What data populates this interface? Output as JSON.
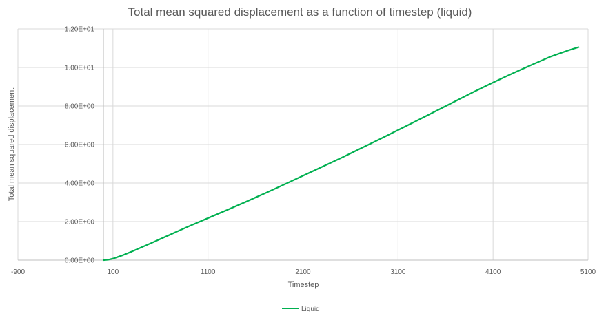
{
  "chart_data": {
    "type": "line",
    "title": "Total mean squared displacement as a function of timestep (liquid)",
    "xlabel": "Timestep",
    "ylabel": "Total mean squared displacement",
    "xlim": [
      -900,
      5100
    ],
    "ylim": [
      0,
      12
    ],
    "x_ticks": [
      -900,
      100,
      1100,
      2100,
      3100,
      4100,
      5100
    ],
    "x_tick_labels": [
      "-900",
      "100",
      "1100",
      "2100",
      "3100",
      "4100",
      "5100"
    ],
    "y_ticks": [
      0,
      2,
      4,
      6,
      8,
      10,
      12
    ],
    "y_tick_labels": [
      "0.00E+00",
      "2.00E+00",
      "4.00E+00",
      "6.00E+00",
      "8.00E+00",
      "1.00E+01",
      "1.20E+01"
    ],
    "grid": true,
    "legend_position": "bottom",
    "series": [
      {
        "name": "Liquid",
        "color": "#00b050",
        "x": [
          0,
          50,
          100,
          200,
          300,
          500,
          700,
          900,
          1100,
          1300,
          1500,
          1700,
          1900,
          2100,
          2300,
          2500,
          2700,
          2900,
          3100,
          3300,
          3500,
          3700,
          3900,
          4100,
          4300,
          4500,
          4700,
          4900,
          5000
        ],
        "y": [
          0.0,
          0.02,
          0.08,
          0.25,
          0.45,
          0.88,
          1.32,
          1.76,
          2.18,
          2.6,
          3.03,
          3.47,
          3.92,
          4.38,
          4.84,
          5.3,
          5.78,
          6.26,
          6.75,
          7.24,
          7.74,
          8.24,
          8.74,
          9.22,
          9.68,
          10.12,
          10.55,
          10.9,
          11.05
        ]
      }
    ]
  }
}
